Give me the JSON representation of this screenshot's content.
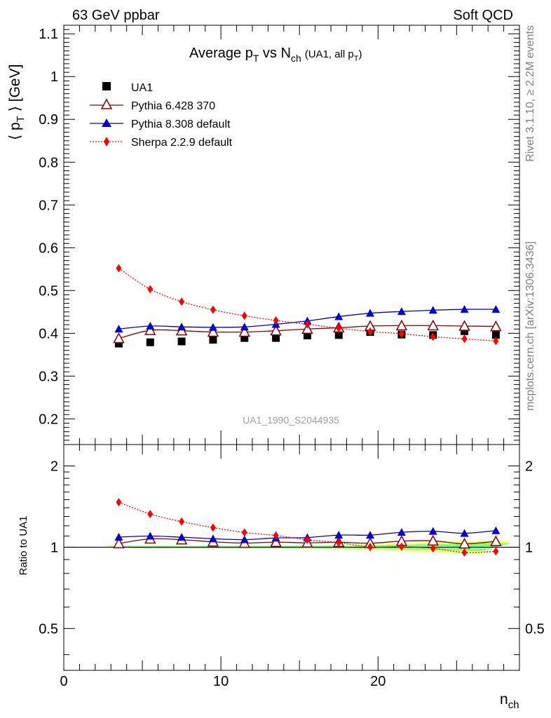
{
  "header": {
    "left": "63 GeV ppbar",
    "right": "Soft QCD"
  },
  "side_text": {
    "rivet": "Rivet 3.1.10, ≥ 2.2M events",
    "mcplots": "mcplots.cern.ch [arXiv:1306.3436]"
  },
  "watermark": "UA1_1990_S2044935",
  "colors": {
    "data": "#000000",
    "pythia6": "#8b0000",
    "pythia8": "#0000cc",
    "sherpa": "#ff0000",
    "band_inner": "#7fff7f",
    "band_outer": "#ffff80"
  },
  "chart_data": [
    {
      "type": "scatter",
      "title": "Average p_T vs N_ch (UA1, all p_T)",
      "title_parts": {
        "main": "Average p",
        "main_sub": "T",
        "vs": " vs N",
        "vs_sub": "ch",
        "extra": "(UA1, all p",
        "extra_sub": "T",
        "extra_end": ")"
      },
      "ylabel": "⟨ p_T ⟩ [GeV]",
      "ylabel_parts": {
        "open": "⟨ p",
        "sub": "T",
        "close": " ⟩ [GeV]"
      },
      "xlim": [
        0,
        29
      ],
      "ylim": [
        0.14,
        1.12
      ],
      "y_ticks": [
        0.2,
        0.3,
        0.4,
        0.5,
        0.6,
        0.7,
        0.8,
        0.9,
        1,
        1.1
      ],
      "y_tick_labels": [
        "0.2",
        "0.3",
        "0.4",
        "0.5",
        "0.6",
        "0.7",
        "0.8",
        "0.9",
        "1",
        "1.1"
      ],
      "legend_position": "top-left",
      "x": [
        3.5,
        5.5,
        7.5,
        9.5,
        11.5,
        13.5,
        15.5,
        17.5,
        19.5,
        21.5,
        23.5,
        25.5,
        27.5
      ],
      "series": [
        {
          "name": "UA1",
          "marker": "square",
          "values": [
            0.376,
            0.379,
            0.381,
            0.385,
            0.389,
            0.389,
            0.395,
            0.396,
            0.403,
            0.397,
            0.396,
            0.405,
            0.396
          ]
        },
        {
          "name": "Pythia 6.428 370",
          "marker": "open-triangle",
          "values": [
            0.388,
            0.407,
            0.406,
            0.403,
            0.403,
            0.406,
            0.41,
            0.413,
            0.417,
            0.418,
            0.418,
            0.417,
            0.416
          ]
        },
        {
          "name": "Pythia 8.308 default",
          "marker": "filled-triangle",
          "values": [
            0.41,
            0.417,
            0.415,
            0.414,
            0.415,
            0.421,
            0.429,
            0.439,
            0.447,
            0.451,
            0.454,
            0.456,
            0.456
          ]
        },
        {
          "name": "Sherpa 2.2.9 default",
          "marker": "diamond",
          "values": [
            0.552,
            0.503,
            0.474,
            0.455,
            0.441,
            0.43,
            0.421,
            0.412,
            0.404,
            0.399,
            0.392,
            0.387,
            0.382
          ]
        }
      ]
    },
    {
      "type": "scatter",
      "ylabel": "Ratio to UA1",
      "xlabel": "n_ch",
      "xlabel_parts": {
        "main": "n",
        "sub": "ch"
      },
      "xlim": [
        0,
        29
      ],
      "ylim": [
        0.35,
        2.4
      ],
      "y_scale": "log",
      "y_ticks": [
        0.5,
        1,
        2
      ],
      "y_tick_labels": [
        "0.5",
        "1",
        "2"
      ],
      "x_ticks": [
        0,
        10,
        20
      ],
      "x_tick_labels": [
        "0",
        "10",
        "20"
      ],
      "x": [
        3.5,
        5.5,
        7.5,
        9.5,
        11.5,
        13.5,
        15.5,
        17.5,
        19.5,
        21.5,
        23.5,
        25.5,
        27.5
      ],
      "band_inner": [
        0.01,
        0.01,
        0.01,
        0.01,
        0.01,
        0.01,
        0.012,
        0.012,
        0.015,
        0.02,
        0.025,
        0.03,
        0.035
      ],
      "band_outer": [
        0.012,
        0.012,
        0.012,
        0.012,
        0.012,
        0.013,
        0.015,
        0.018,
        0.025,
        0.035,
        0.045,
        0.055,
        0.06
      ],
      "series": [
        {
          "name": "Pythia 6.428 370",
          "values": [
            1.032,
            1.074,
            1.066,
            1.047,
            1.036,
            1.044,
            1.038,
            1.043,
            1.035,
            1.053,
            1.056,
            1.03,
            1.051
          ]
        },
        {
          "name": "Pythia 8.308 default",
          "values": [
            1.09,
            1.1,
            1.089,
            1.075,
            1.067,
            1.082,
            1.086,
            1.109,
            1.109,
            1.136,
            1.146,
            1.126,
            1.152
          ]
        },
        {
          "name": "Sherpa 2.2.9 default",
          "values": [
            1.468,
            1.327,
            1.244,
            1.182,
            1.134,
            1.105,
            1.066,
            1.04,
            1.002,
            1.005,
            0.99,
            0.956,
            0.965
          ]
        }
      ]
    }
  ]
}
